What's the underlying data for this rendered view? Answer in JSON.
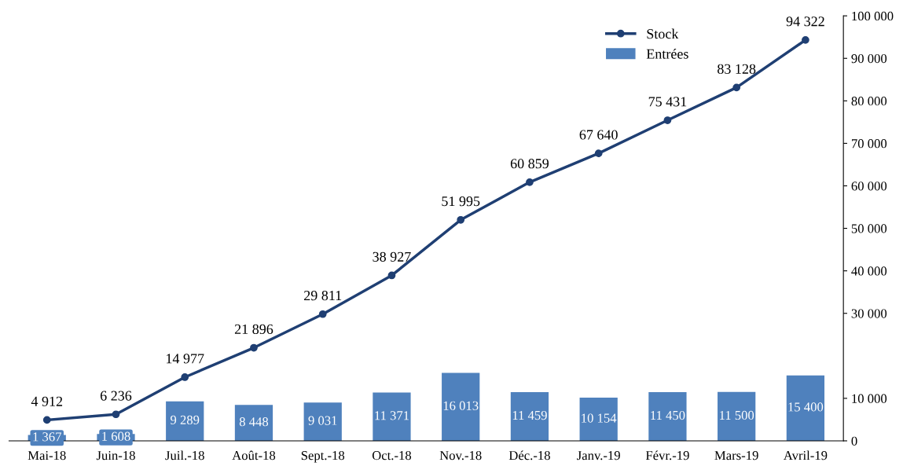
{
  "chart_data": {
    "type": "bar",
    "categories": [
      "Mai-18",
      "Juin-18",
      "Juil.-18",
      "Août-18",
      "Sept.-18",
      "Oct.-18",
      "Nov.-18",
      "Déc.-18",
      "Janv.-19",
      "Févr.-19",
      "Mars-19",
      "Avril-19"
    ],
    "series": [
      {
        "name": "Stock",
        "type": "line",
        "color": "#1f3f73",
        "marker": "circle",
        "values": [
          4912,
          6236,
          14977,
          21896,
          29811,
          38927,
          51995,
          60859,
          67640,
          75431,
          83128,
          94322
        ],
        "value_labels": [
          "4 912",
          "6 236",
          "14 977",
          "21 896",
          "29 811",
          "38 927",
          "51 995",
          "60 859",
          "67 640",
          "75 431",
          "83 128",
          "94 322"
        ]
      },
      {
        "name": "Entrées",
        "color": "#4f81bd",
        "values": [
          1367,
          1608,
          9289,
          8448,
          9031,
          11371,
          16013,
          11459,
          10154,
          11450,
          11500,
          15400
        ],
        "value_labels": [
          "1 367",
          "1 608",
          "9 289",
          "8 448",
          "9 031",
          "11 371",
          "16 013",
          "11 459",
          "10 154",
          "11 450",
          "11 500",
          "15 400"
        ]
      }
    ],
    "ylim": [
      0,
      100000
    ],
    "yticks": [
      {
        "value": 0,
        "label": "0"
      },
      {
        "value": 10000,
        "label": "10 000"
      },
      {
        "value": 30000,
        "label": "30 000"
      },
      {
        "value": 40000,
        "label": "40 000"
      },
      {
        "value": 50000,
        "label": "50 000"
      },
      {
        "value": 60000,
        "label": "60 000"
      },
      {
        "value": 70000,
        "label": "70 000"
      },
      {
        "value": 80000,
        "label": "80 000"
      },
      {
        "value": 90000,
        "label": "90 000"
      },
      {
        "value": 100000,
        "label": "100 000"
      }
    ],
    "legend": "top right",
    "grid": false
  }
}
